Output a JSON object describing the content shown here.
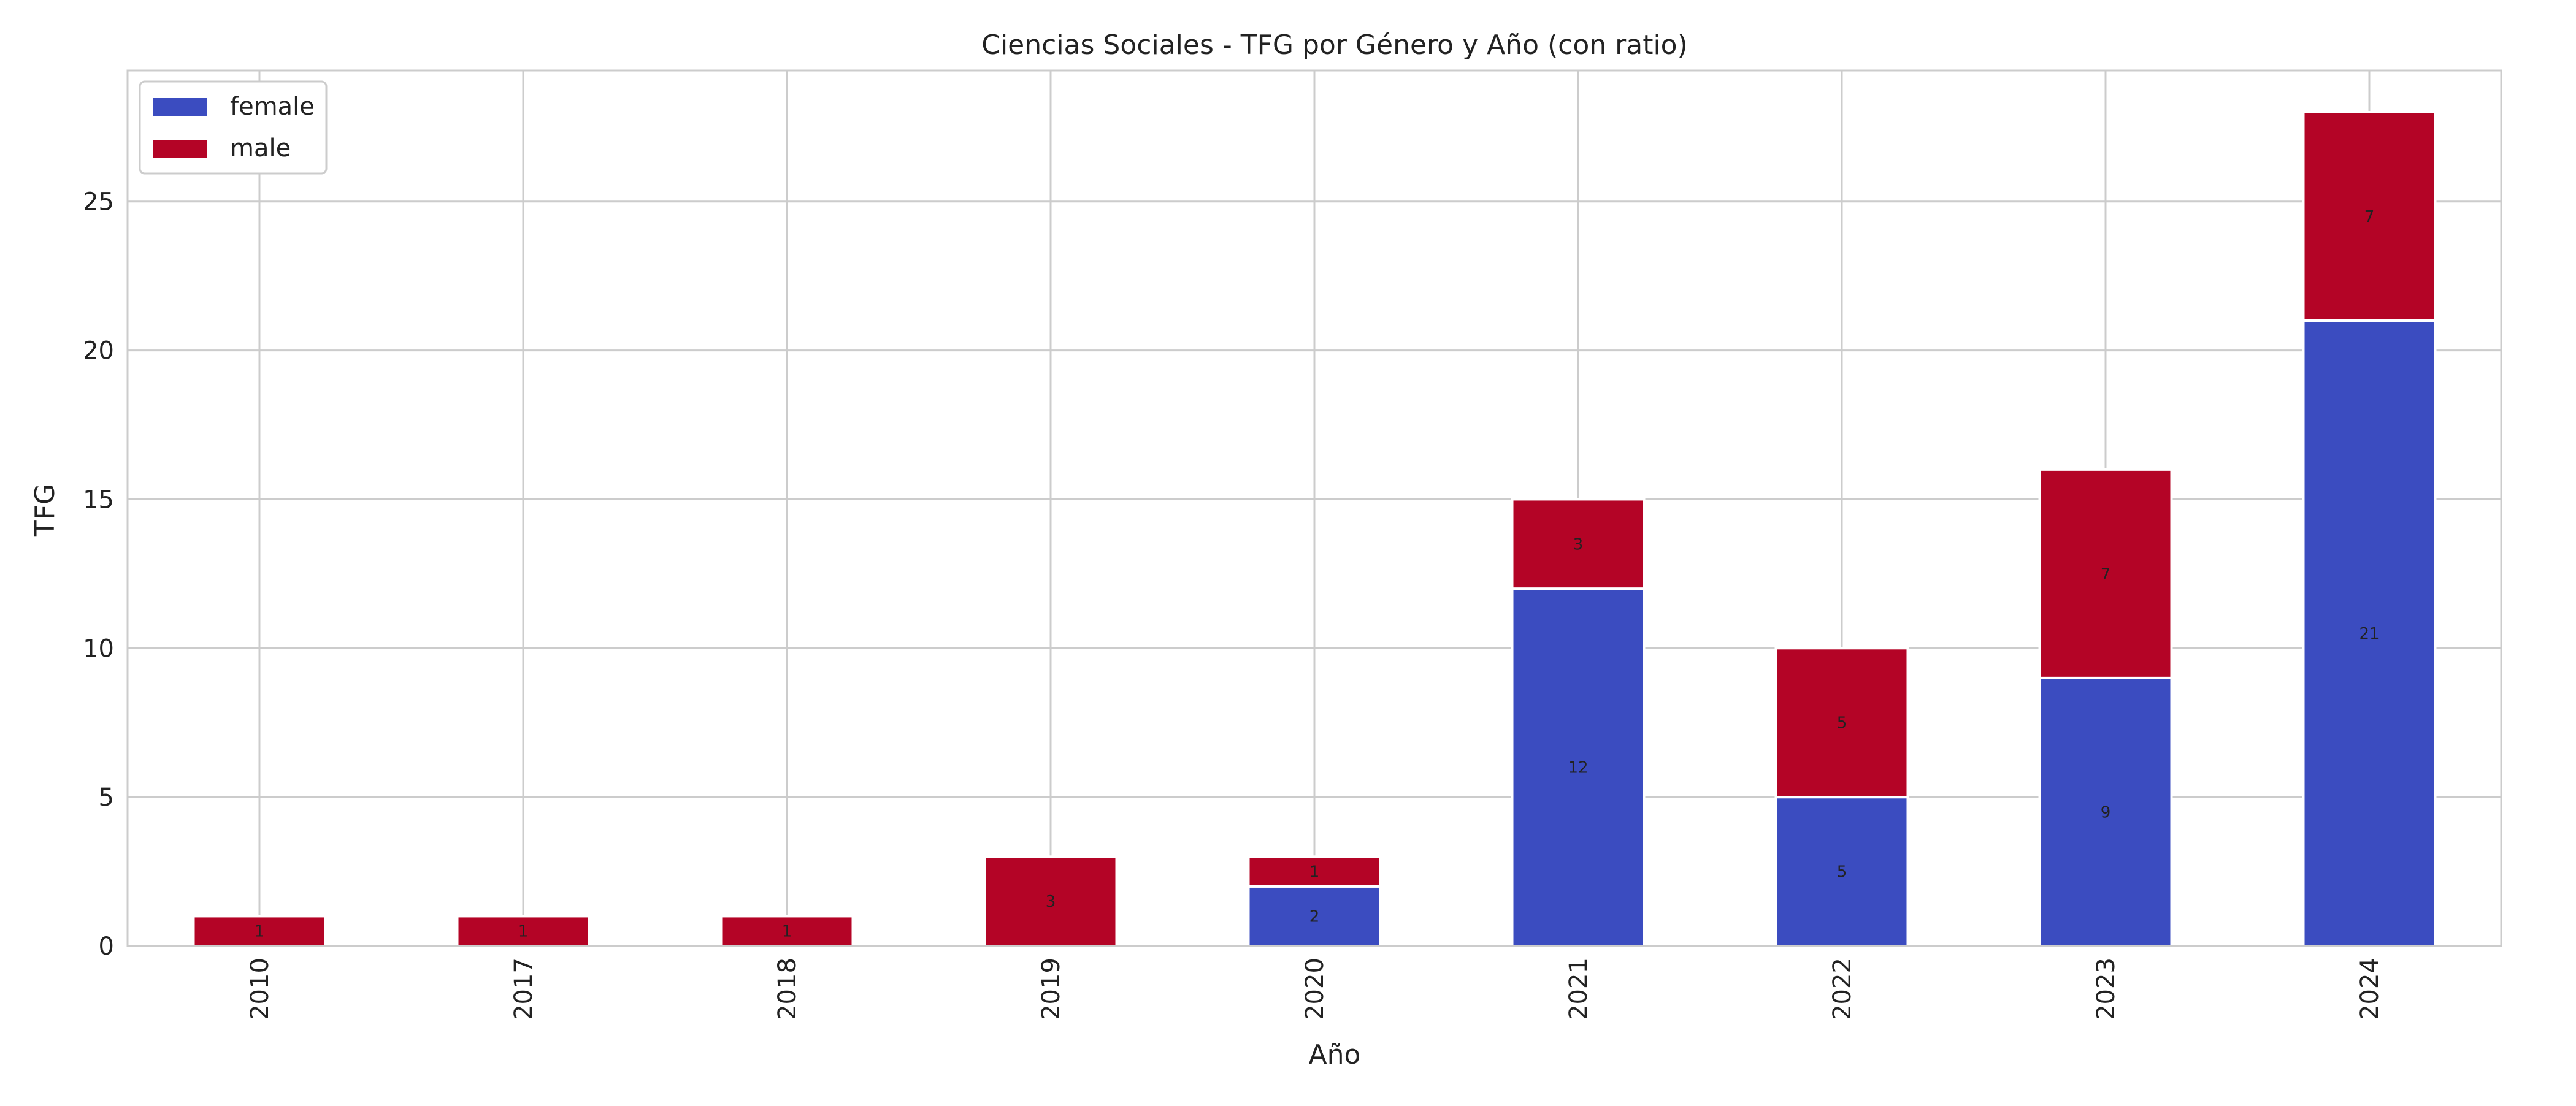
{
  "chart_data": {
    "type": "bar",
    "stacked": true,
    "title": "Ciencias Sociales - TFG por Género y Año (con ratio)",
    "xlabel": "Año",
    "ylabel": "TFG",
    "categories": [
      "2010",
      "2017",
      "2018",
      "2019",
      "2020",
      "2021",
      "2022",
      "2023",
      "2024"
    ],
    "series": [
      {
        "name": "female",
        "color": "#3b4cc0",
        "values": [
          0,
          0,
          0,
          0,
          2,
          12,
          5,
          9,
          21
        ]
      },
      {
        "name": "male",
        "color": "#b40426",
        "values": [
          1,
          1,
          1,
          3,
          1,
          3,
          5,
          7,
          7
        ]
      }
    ],
    "ylim": [
      0,
      29.4
    ],
    "yticks": [
      0,
      5,
      10,
      15,
      20,
      25
    ],
    "grid": true,
    "legend": "top-left",
    "data_labels": true
  }
}
